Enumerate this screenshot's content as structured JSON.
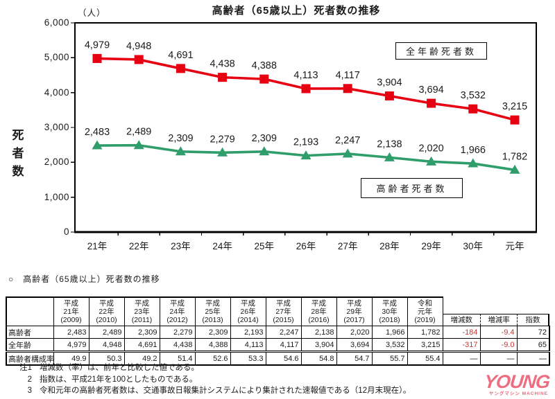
{
  "chart": {
    "title": "高齢者（65歳以上）死者数の推移",
    "unit_label": "（人）",
    "y_axis_label": "死者数",
    "legend_all_ages": "全年齢死者数",
    "legend_elderly": "高齢者死者数",
    "colors": {
      "all_ages": "#e60012",
      "elderly": "#2f9e6a",
      "text": "#1a1a1a"
    }
  },
  "chart_data": {
    "type": "line",
    "categories": [
      "21年",
      "22年",
      "23年",
      "24年",
      "25年",
      "26年",
      "27年",
      "28年",
      "29年",
      "30年",
      "元年"
    ],
    "series": [
      {
        "name": "全年齢死者数",
        "marker": "square",
        "color": "#e60012",
        "values": [
          4979,
          4948,
          4691,
          4438,
          4388,
          4113,
          4117,
          3904,
          3694,
          3532,
          3215
        ]
      },
      {
        "name": "高齢者死者数",
        "marker": "triangle",
        "color": "#2f9e6a",
        "values": [
          2483,
          2489,
          2309,
          2279,
          2309,
          2193,
          2247,
          2138,
          2020,
          1966,
          1782
        ]
      }
    ],
    "title": "高齢者（65歳以上）死者数の推移",
    "xlabel": "",
    "ylabel": "死者数",
    "ylim": [
      0,
      6000
    ],
    "y_ticks": [
      "6,000",
      "5,000",
      "4,000",
      "3,000",
      "2,000",
      "1,000",
      "0"
    ],
    "grid": false,
    "data_labels": true,
    "legend_position": "inline-boxes"
  },
  "section": {
    "heading": "○　高齢者（65歳以上）死者数の推移"
  },
  "table": {
    "year_headers": [
      {
        "era": "平成",
        "year": "21年",
        "western": "(2009)"
      },
      {
        "era": "平成",
        "year": "22年",
        "western": "(2010)"
      },
      {
        "era": "平成",
        "year": "23年",
        "western": "(2011)"
      },
      {
        "era": "平成",
        "year": "24年",
        "western": "(2012)"
      },
      {
        "era": "平成",
        "year": "25年",
        "western": "(2013)"
      },
      {
        "era": "平成",
        "year": "26年",
        "western": "(2014)"
      },
      {
        "era": "平成",
        "year": "27年",
        "western": "(2015)"
      },
      {
        "era": "平成",
        "year": "28年",
        "western": "(2016)"
      },
      {
        "era": "平成",
        "year": "29年",
        "western": "(2017)"
      },
      {
        "era": "平成",
        "year": "30年",
        "western": "(2018)"
      },
      {
        "era": "令和",
        "year": "元年",
        "western": "(2019)"
      }
    ],
    "extra_headers": [
      "増減数",
      "増減率",
      "指数"
    ],
    "rows": [
      {
        "label": "高齢者",
        "values": [
          "2,483",
          "2,489",
          "2,309",
          "2,279",
          "2,309",
          "2,193",
          "2,247",
          "2,138",
          "2,020",
          "1,966",
          "1,782"
        ],
        "extra": [
          {
            "text": "-184",
            "red": true
          },
          {
            "text": "-9.4",
            "red": true
          },
          {
            "text": "72",
            "red": false
          }
        ]
      },
      {
        "label": "全年齢",
        "values": [
          "4,979",
          "4,948",
          "4,691",
          "4,438",
          "4,388",
          "4,113",
          "4,117",
          "3,904",
          "3,694",
          "3,532",
          "3,215"
        ],
        "extra": [
          {
            "text": "-317",
            "red": true
          },
          {
            "text": "-9.0",
            "red": true
          },
          {
            "text": "65",
            "red": false
          }
        ]
      },
      {
        "label": "高齢者構成率",
        "values": [
          "49.9",
          "50.3",
          "49.2",
          "51.4",
          "52.6",
          "53.3",
          "54.6",
          "54.8",
          "54.7",
          "55.7",
          "55.4"
        ],
        "extra": [
          {
            "text": "—",
            "red": false
          },
          {
            "text": "—",
            "red": false
          },
          {
            "text": "—",
            "red": false
          }
        ]
      }
    ]
  },
  "notes": [
    {
      "num": "注1",
      "text": "増減数（率）は、前年と比較した値である。"
    },
    {
      "num": "2",
      "text": "指数は、平成21年を100としたものである。"
    },
    {
      "num": "3",
      "text": "令和元年の高齢者死者数は、交通事故日報集計システムにより集計された速報値である（12月末現在）。"
    }
  ],
  "watermark": {
    "main": "YOUNG",
    "sub": "ヤングマシン MACHINE"
  }
}
